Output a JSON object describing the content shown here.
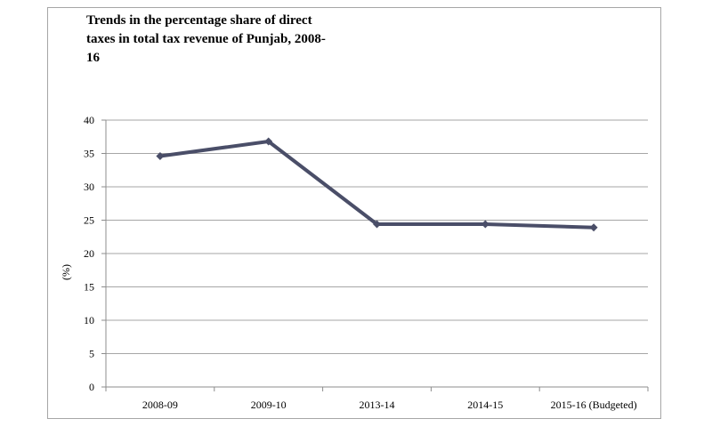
{
  "chart_data": {
    "type": "line",
    "title": "Trends in the percentage share of direct taxes in total tax revenue of Punjab, 2008-16",
    "xlabel": "",
    "ylabel": "(%)",
    "categories": [
      "2008-09",
      "2009-10",
      "2013-14",
      "2014-15",
      "2015-16 (Budgeted)"
    ],
    "series": [
      {
        "values": [
          34.6,
          36.8,
          24.4,
          24.4,
          23.9
        ]
      }
    ],
    "ylim": [
      0,
      40
    ],
    "yticks": [
      0,
      5,
      10,
      15,
      20,
      25,
      30,
      35,
      40
    ],
    "grid": true,
    "legend": "none",
    "colors": {
      "line": "#4a4e68",
      "grid": "#a6a6a6",
      "frame": "#a6a6a6"
    }
  }
}
